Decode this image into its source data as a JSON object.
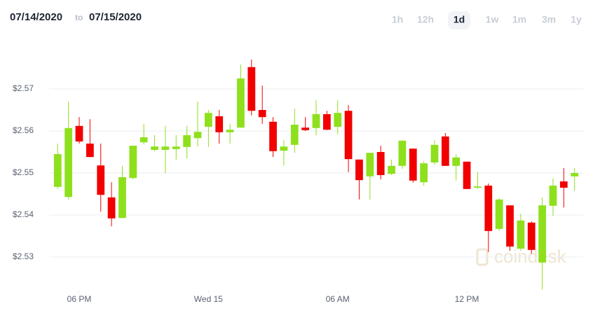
{
  "header": {
    "from": "07/14/2020",
    "to_word": "to",
    "to": "07/15/2020",
    "ranges": [
      "1h",
      "12h",
      "1d",
      "1w",
      "1m",
      "3m",
      "1y"
    ],
    "selected_range": "1d"
  },
  "watermark": "coindesk",
  "chart_data": {
    "type": "candlestick",
    "x": [
      17,
      17.5,
      18,
      18.5,
      19,
      19.5,
      20,
      20.5,
      21,
      21.5,
      22,
      22.5,
      23,
      23.5,
      24,
      24.5,
      25,
      25.5,
      26,
      26.5,
      27,
      27.5,
      28,
      28.5,
      29,
      29.5,
      30,
      30.5,
      31,
      31.5,
      32,
      32.5,
      33,
      33.5,
      34,
      34.5,
      35,
      35.5,
      36,
      36.5,
      37,
      37.5,
      38,
      38.5,
      39,
      39.5,
      40,
      40.5,
      41
    ],
    "open": [
      2.5467,
      2.5443,
      2.5612,
      2.557,
      2.5518,
      2.5442,
      2.5393,
      2.5488,
      2.5573,
      2.5555,
      2.5555,
      2.5557,
      2.5562,
      2.5583,
      2.561,
      2.5635,
      2.5597,
      2.5608,
      2.5752,
      2.565,
      2.5622,
      2.5553,
      2.5567,
      2.5608,
      2.5607,
      2.564,
      2.561,
      2.5648,
      2.5532,
      2.5492,
      2.555,
      2.5498,
      2.5517,
      2.5558,
      2.5478,
      2.5525,
      2.5587,
      2.5517,
      2.5527,
      2.5465,
      2.547,
      2.5367,
      2.5423,
      2.532,
      2.5382,
      2.5287,
      2.5422,
      2.548,
      2.5492
    ],
    "high": [
      2.557,
      2.567,
      2.5633,
      2.5628,
      2.557,
      2.5478,
      2.5517,
      2.5565,
      2.5617,
      2.559,
      2.5612,
      2.559,
      2.5612,
      2.567,
      2.565,
      2.565,
      2.5617,
      2.5758,
      2.577,
      2.5708,
      2.5633,
      2.5578,
      2.5653,
      2.5633,
      2.5673,
      2.5648,
      2.5673,
      2.5662,
      2.5532,
      2.5548,
      2.5565,
      2.5532,
      2.5577,
      2.5558,
      2.5528,
      2.5578,
      2.5595,
      2.5545,
      2.5527,
      2.5503,
      2.5475,
      2.544,
      2.5423,
      2.5403,
      2.5385,
      2.5442,
      2.5487,
      2.5512,
      2.5512
    ],
    "low": [
      2.5462,
      2.5437,
      2.557,
      2.5538,
      2.5408,
      2.5373,
      2.5393,
      2.5485,
      2.5568,
      2.5552,
      2.55,
      2.5532,
      2.5535,
      2.5563,
      2.5562,
      2.557,
      2.557,
      2.5608,
      2.5637,
      2.5617,
      2.5538,
      2.5518,
      2.5548,
      2.56,
      2.559,
      2.5602,
      2.5592,
      2.5502,
      2.5437,
      2.5437,
      2.5485,
      2.5495,
      2.551,
      2.5477,
      2.547,
      2.552,
      2.5517,
      2.5482,
      2.5462,
      2.5462,
      2.5312,
      2.5362,
      2.5315,
      2.5315,
      2.5308,
      2.5223,
      2.5398,
      2.5418,
      2.5458
    ],
    "close": [
      2.5545,
      2.5607,
      2.5575,
      2.5538,
      2.5448,
      2.5392,
      2.549,
      2.5565,
      2.5585,
      2.5563,
      2.5563,
      2.5563,
      2.559,
      2.5598,
      2.5643,
      2.5597,
      2.5603,
      2.5725,
      2.5648,
      2.5633,
      2.5552,
      2.5563,
      2.5615,
      2.5602,
      2.564,
      2.5603,
      2.5643,
      2.5533,
      2.5483,
      2.5548,
      2.5495,
      2.5517,
      2.5577,
      2.5482,
      2.5523,
      2.5567,
      2.5517,
      2.5537,
      2.5462,
      2.5468,
      2.5362,
      2.5437,
      2.5325,
      2.5387,
      2.5317,
      2.5423,
      2.547,
      2.5465,
      2.55
    ],
    "up_color": "#8ee01c",
    "down_color": "#f20000",
    "xlim": [
      16.6,
      41.4
    ],
    "xticks": [
      {
        "value": 18,
        "label": "06 PM"
      },
      {
        "value": 24,
        "label": "Wed 15"
      },
      {
        "value": 30,
        "label": "06 AM"
      },
      {
        "value": 36,
        "label": "12 PM"
      }
    ],
    "ylim": [
      2.522,
      2.5795
    ],
    "yticks": [
      {
        "value": 2.53,
        "label": "$2.53"
      },
      {
        "value": 2.54,
        "label": "$2.54"
      },
      {
        "value": 2.55,
        "label": "$2.55"
      },
      {
        "value": 2.56,
        "label": "$2.56"
      },
      {
        "value": 2.57,
        "label": "$2.57"
      }
    ],
    "grid": true
  }
}
